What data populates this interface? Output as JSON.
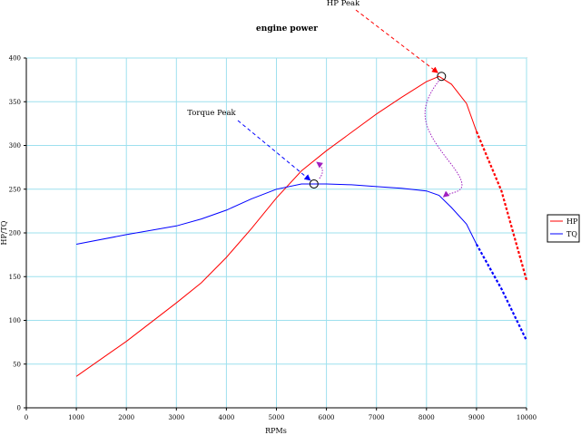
{
  "chart_data": {
    "type": "line",
    "title": "engine power",
    "xlabel": "RPMs",
    "ylabel": "HP/TQ",
    "xlim": [
      0,
      10000
    ],
    "ylim": [
      0,
      400
    ],
    "x_ticks": [
      0,
      1000,
      2000,
      3000,
      4000,
      5000,
      6000,
      7000,
      8000,
      9000,
      10000
    ],
    "y_ticks": [
      0,
      50,
      100,
      150,
      200,
      250,
      300,
      350,
      400
    ],
    "grid": true,
    "legend_position": "right",
    "series": [
      {
        "name": "HP",
        "color": "#ff0000",
        "x": [
          1000,
          2000,
          3000,
          3500,
          4000,
          4500,
          5000,
          5500,
          6000,
          6500,
          7000,
          7500,
          8000,
          8250,
          8500,
          8800,
          9000
        ],
        "y": [
          36,
          76,
          120,
          143,
          172,
          205,
          240,
          271,
          294,
          315,
          336,
          355,
          373,
          379,
          370,
          348,
          316
        ],
        "projected_x": [
          9000,
          9500,
          10000
        ],
        "projected_y": [
          316,
          248,
          146
        ]
      },
      {
        "name": "TQ",
        "color": "#0000ff",
        "x": [
          1000,
          2000,
          3000,
          3500,
          4000,
          4500,
          5000,
          5500,
          5750,
          6000,
          6500,
          7000,
          7500,
          8000,
          8250,
          8500,
          8800,
          9000
        ],
        "y": [
          187,
          198,
          208,
          216,
          226,
          239,
          250,
          256,
          256,
          256,
          255,
          253,
          251,
          248,
          243,
          229,
          210,
          187
        ],
        "projected_x": [
          9000,
          9500,
          10000
        ],
        "projected_y": [
          187,
          136,
          77
        ]
      }
    ],
    "annotations": [
      {
        "text": "HP Peak",
        "point": [
          8300,
          379
        ]
      },
      {
        "text": "Torque Peak",
        "point": [
          5750,
          256
        ]
      }
    ]
  }
}
